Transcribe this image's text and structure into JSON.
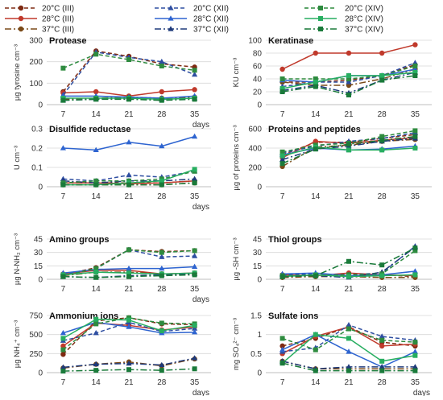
{
  "legend": {
    "columns": [
      [
        "20°C (III)",
        "28°C (III)",
        "37°C (III)"
      ],
      [
        "20°C (XII)",
        "28°C (XII)",
        "37°C (XII)"
      ],
      [
        "20°C (XIV)",
        "28°C (XIV)",
        "37°C (XIV)"
      ]
    ]
  },
  "series_styles": [
    {
      "name": "20°C (III)",
      "color": "#7f2a12",
      "dash": "5,3",
      "marker": "circle"
    },
    {
      "name": "28°C (III)",
      "color": "#c0392b",
      "dash": "",
      "marker": "circle"
    },
    {
      "name": "37°C (III)",
      "color": "#7a4a18",
      "dash": "8,3,2,3",
      "marker": "circle"
    },
    {
      "name": "20°C (XII)",
      "color": "#2e4ea1",
      "dash": "5,3",
      "marker": "triangle"
    },
    {
      "name": "28°C (XII)",
      "color": "#2e64d0",
      "dash": "",
      "marker": "triangle"
    },
    {
      "name": "37°C (XII)",
      "color": "#1f3a7a",
      "dash": "8,3,2,3",
      "marker": "triangle"
    },
    {
      "name": "20°C (XIV)",
      "color": "#2e8b3f",
      "dash": "5,3",
      "marker": "square"
    },
    {
      "name": "28°C (XIV)",
      "color": "#27ae60",
      "dash": "",
      "marker": "square"
    },
    {
      "name": "37°C (XIV)",
      "color": "#1a7a3a",
      "dash": "8,3,2,3",
      "marker": "square"
    }
  ],
  "chart_data": [
    {
      "type": "line",
      "title": "Protease",
      "ylabel": "µg tyrosine cm⁻³",
      "ylim": [
        0,
        300
      ],
      "yticks": [
        0,
        100,
        200,
        300
      ],
      "x": [
        7,
        14,
        21,
        28,
        35
      ],
      "xlabel": "days",
      "series": [
        {
          "name": "20°C (III)",
          "values": [
            60,
            250,
            225,
            190,
            175
          ]
        },
        {
          "name": "28°C (III)",
          "values": [
            55,
            60,
            40,
            60,
            70
          ]
        },
        {
          "name": "37°C (III)",
          "values": [
            25,
            30,
            35,
            30,
            35
          ]
        },
        {
          "name": "20°C (XII)",
          "values": [
            45,
            245,
            220,
            200,
            140
          ]
        },
        {
          "name": "28°C (XII)",
          "values": [
            40,
            40,
            35,
            30,
            40
          ]
        },
        {
          "name": "37°C (XII)",
          "values": [
            20,
            25,
            30,
            25,
            30
          ]
        },
        {
          "name": "20°C (XIV)",
          "values": [
            170,
            235,
            210,
            180,
            160
          ]
        },
        {
          "name": "28°C (XIV)",
          "values": [
            30,
            30,
            30,
            25,
            30
          ]
        },
        {
          "name": "37°C (XIV)",
          "values": [
            20,
            25,
            25,
            20,
            25
          ]
        }
      ]
    },
    {
      "type": "line",
      "title": "Keratinase",
      "ylabel": "KU cm⁻³",
      "ylim": [
        0,
        100
      ],
      "yticks": [
        0,
        20,
        40,
        60,
        80,
        100
      ],
      "x": [
        7,
        14,
        21,
        28,
        35
      ],
      "xlabel": "",
      "series": [
        {
          "name": "20°C (III)",
          "values": [
            35,
            35,
            38,
            45,
            62
          ]
        },
        {
          "name": "28°C (III)",
          "values": [
            55,
            80,
            80,
            80,
            93
          ]
        },
        {
          "name": "37°C (III)",
          "values": [
            35,
            30,
            30,
            40,
            55
          ]
        },
        {
          "name": "20°C (XII)",
          "values": [
            28,
            35,
            35,
            45,
            65
          ]
        },
        {
          "name": "28°C (XII)",
          "values": [
            38,
            35,
            45,
            45,
            55
          ]
        },
        {
          "name": "37°C (XII)",
          "values": [
            22,
            30,
            18,
            38,
            50
          ]
        },
        {
          "name": "20°C (XIV)",
          "values": [
            40,
            40,
            40,
            45,
            60
          ]
        },
        {
          "name": "28°C (XIV)",
          "values": [
            25,
            35,
            45,
            45,
            50
          ]
        },
        {
          "name": "37°C (XIV)",
          "values": [
            20,
            28,
            15,
            38,
            45
          ]
        }
      ]
    },
    {
      "type": "line",
      "title": "Disulfide reductase",
      "ylabel": "U cm⁻³",
      "ylim": [
        0,
        0.3
      ],
      "yticks": [
        0,
        0.1,
        0.2,
        0.3
      ],
      "x": [
        7,
        14,
        21,
        28,
        35
      ],
      "xlabel": "days",
      "series": [
        {
          "name": "20°C (III)",
          "values": [
            0.02,
            0.02,
            0.02,
            0.02,
            0.03
          ]
        },
        {
          "name": "28°C (III)",
          "values": [
            0.02,
            0.02,
            0.015,
            0.02,
            0.03
          ]
        },
        {
          "name": "37°C (III)",
          "values": [
            0.01,
            0.01,
            0.01,
            0.01,
            0.02
          ]
        },
        {
          "name": "20°C (XII)",
          "values": [
            0.04,
            0.03,
            0.06,
            0.05,
            0.08
          ]
        },
        {
          "name": "28°C (XII)",
          "values": [
            0.2,
            0.19,
            0.23,
            0.21,
            0.26
          ]
        },
        {
          "name": "37°C (XII)",
          "values": [
            0.03,
            0.02,
            0.03,
            0.03,
            0.04
          ]
        },
        {
          "name": "20°C (XIV)",
          "values": [
            0.02,
            0.03,
            0.03,
            0.04,
            0.08
          ]
        },
        {
          "name": "28°C (XIV)",
          "values": [
            0.01,
            0.01,
            0.02,
            0.03,
            0.09
          ]
        },
        {
          "name": "37°C (XIV)",
          "values": [
            0.01,
            0.01,
            0.01,
            0.01,
            0.02
          ]
        }
      ]
    },
    {
      "type": "line",
      "title": "Proteins and peptides",
      "ylabel": "µg of proteins cm⁻³",
      "ylim": [
        0,
        600
      ],
      "yticks": [
        0,
        200,
        400,
        600
      ],
      "x": [
        7,
        14,
        21,
        28,
        35
      ],
      "xlabel": "",
      "series": [
        {
          "name": "20°C (III)",
          "values": [
            330,
            460,
            460,
            500,
            540
          ]
        },
        {
          "name": "28°C (III)",
          "values": [
            300,
            470,
            450,
            480,
            510
          ]
        },
        {
          "name": "37°C (III)",
          "values": [
            210,
            410,
            430,
            470,
            490
          ]
        },
        {
          "name": "20°C (XII)",
          "values": [
            350,
            420,
            470,
            500,
            560
          ]
        },
        {
          "name": "28°C (XII)",
          "values": [
            330,
            400,
            380,
            390,
            420
          ]
        },
        {
          "name": "37°C (XII)",
          "values": [
            280,
            390,
            420,
            470,
            500
          ]
        },
        {
          "name": "20°C (XIV)",
          "values": [
            360,
            430,
            450,
            520,
            580
          ]
        },
        {
          "name": "28°C (XIV)",
          "values": [
            320,
            410,
            380,
            380,
            400
          ]
        },
        {
          "name": "37°C (XIV)",
          "values": [
            240,
            390,
            440,
            480,
            520
          ]
        }
      ]
    },
    {
      "type": "line",
      "title": "Amino groups",
      "ylabel": "µg N-NH₂ cm⁻³",
      "ylim": [
        0,
        45
      ],
      "yticks": [
        0,
        15,
        30,
        45
      ],
      "x": [
        7,
        14,
        21,
        28,
        35
      ],
      "xlabel": "days",
      "series": [
        {
          "name": "20°C (III)",
          "values": [
            5,
            13,
            33,
            31,
            32
          ]
        },
        {
          "name": "28°C (III)",
          "values": [
            6,
            10,
            10,
            6,
            7
          ]
        },
        {
          "name": "37°C (III)",
          "values": [
            4,
            8,
            8,
            6,
            6
          ]
        },
        {
          "name": "20°C (XII)",
          "values": [
            5,
            12,
            33,
            25,
            26
          ]
        },
        {
          "name": "28°C (XII)",
          "values": [
            7,
            11,
            12,
            12,
            14
          ]
        },
        {
          "name": "37°C (XII)",
          "values": [
            3,
            2,
            4,
            5,
            6
          ]
        },
        {
          "name": "20°C (XIV)",
          "values": [
            4,
            12,
            33,
            30,
            32
          ]
        },
        {
          "name": "28°C (XIV)",
          "values": [
            5,
            8,
            7,
            6,
            7
          ]
        },
        {
          "name": "37°C (XIV)",
          "values": [
            3,
            2,
            3,
            4,
            5
          ]
        }
      ]
    },
    {
      "type": "line",
      "title": "Thiol groups",
      "ylabel": "µg -SH cm⁻³",
      "ylim": [
        0,
        45
      ],
      "yticks": [
        0,
        15,
        30,
        45
      ],
      "x": [
        7,
        14,
        21,
        28,
        35
      ],
      "xlabel": "",
      "series": [
        {
          "name": "20°C (III)",
          "values": [
            4,
            5,
            6,
            5,
            3
          ]
        },
        {
          "name": "28°C (III)",
          "values": [
            5,
            4,
            7,
            5,
            4
          ]
        },
        {
          "name": "37°C (III)",
          "values": [
            2,
            3,
            3,
            2,
            2
          ]
        },
        {
          "name": "20°C (XII)",
          "values": [
            5,
            6,
            5,
            7,
            37
          ]
        },
        {
          "name": "28°C (XII)",
          "values": [
            6,
            7,
            4,
            5,
            9
          ]
        },
        {
          "name": "37°C (XII)",
          "values": [
            3,
            4,
            2,
            8,
            36
          ]
        },
        {
          "name": "20°C (XIV)",
          "values": [
            4,
            4,
            5,
            6,
            32
          ]
        },
        {
          "name": "28°C (XIV)",
          "values": [
            3,
            5,
            3,
            4,
            5
          ]
        },
        {
          "name": "37°C (XIV)",
          "values": [
            3,
            4,
            20,
            16,
            35
          ]
        }
      ]
    },
    {
      "type": "line",
      "title": "Ammonium ions",
      "ylabel": "µg NH₄⁺ cm⁻³",
      "ylim": [
        0,
        750
      ],
      "yticks": [
        0,
        250,
        500,
        750
      ],
      "x": [
        7,
        14,
        21,
        28,
        35
      ],
      "xlabel": "days",
      "series": [
        {
          "name": "20°C (III)",
          "values": [
            240,
            680,
            720,
            640,
            630
          ]
        },
        {
          "name": "28°C (III)",
          "values": [
            350,
            650,
            620,
            560,
            600
          ]
        },
        {
          "name": "37°C (III)",
          "values": [
            60,
            110,
            140,
            90,
            180
          ]
        },
        {
          "name": "20°C (XII)",
          "values": [
            420,
            520,
            660,
            540,
            580
          ]
        },
        {
          "name": "28°C (XII)",
          "values": [
            520,
            660,
            600,
            520,
            530
          ]
        },
        {
          "name": "37°C (XII)",
          "values": [
            70,
            110,
            120,
            100,
            190
          ]
        },
        {
          "name": "20°C (XIV)",
          "values": [
            300,
            640,
            720,
            650,
            640
          ]
        },
        {
          "name": "28°C (XIV)",
          "values": [
            450,
            700,
            690,
            550,
            620
          ]
        },
        {
          "name": "37°C (XIV)",
          "values": [
            20,
            30,
            40,
            30,
            50
          ]
        }
      ]
    },
    {
      "type": "line",
      "title": "Sulfate ions",
      "ylabel": "mg SO₄²⁻ cm⁻³",
      "ylim": [
        0,
        1.5
      ],
      "yticks": [
        0,
        0.5,
        1,
        1.5
      ],
      "x": [
        7,
        14,
        21,
        28,
        35
      ],
      "xlabel": "days",
      "series": [
        {
          "name": "20°C (III)",
          "values": [
            0.7,
            0.9,
            1.2,
            0.8,
            0.7
          ]
        },
        {
          "name": "28°C (III)",
          "values": [
            0.5,
            0.95,
            1.2,
            0.7,
            0.75
          ]
        },
        {
          "name": "37°C (III)",
          "values": [
            0.3,
            0.1,
            0.1,
            0.1,
            0.1
          ]
        },
        {
          "name": "20°C (XII)",
          "values": [
            0.55,
            0.65,
            1.25,
            0.95,
            0.85
          ]
        },
        {
          "name": "28°C (XII)",
          "values": [
            0.6,
            1.0,
            0.55,
            0.15,
            0.55
          ]
        },
        {
          "name": "37°C (XII)",
          "values": [
            0.3,
            0.1,
            0.15,
            0.15,
            0.15
          ]
        },
        {
          "name": "20°C (XIV)",
          "values": [
            0.9,
            0.6,
            1.15,
            0.85,
            0.8
          ]
        },
        {
          "name": "28°C (XIV)",
          "values": [
            0.25,
            1.0,
            0.9,
            0.3,
            0.45
          ]
        },
        {
          "name": "37°C (XIV)",
          "values": [
            0.25,
            0.05,
            0.05,
            0.05,
            0.05
          ]
        }
      ]
    }
  ]
}
